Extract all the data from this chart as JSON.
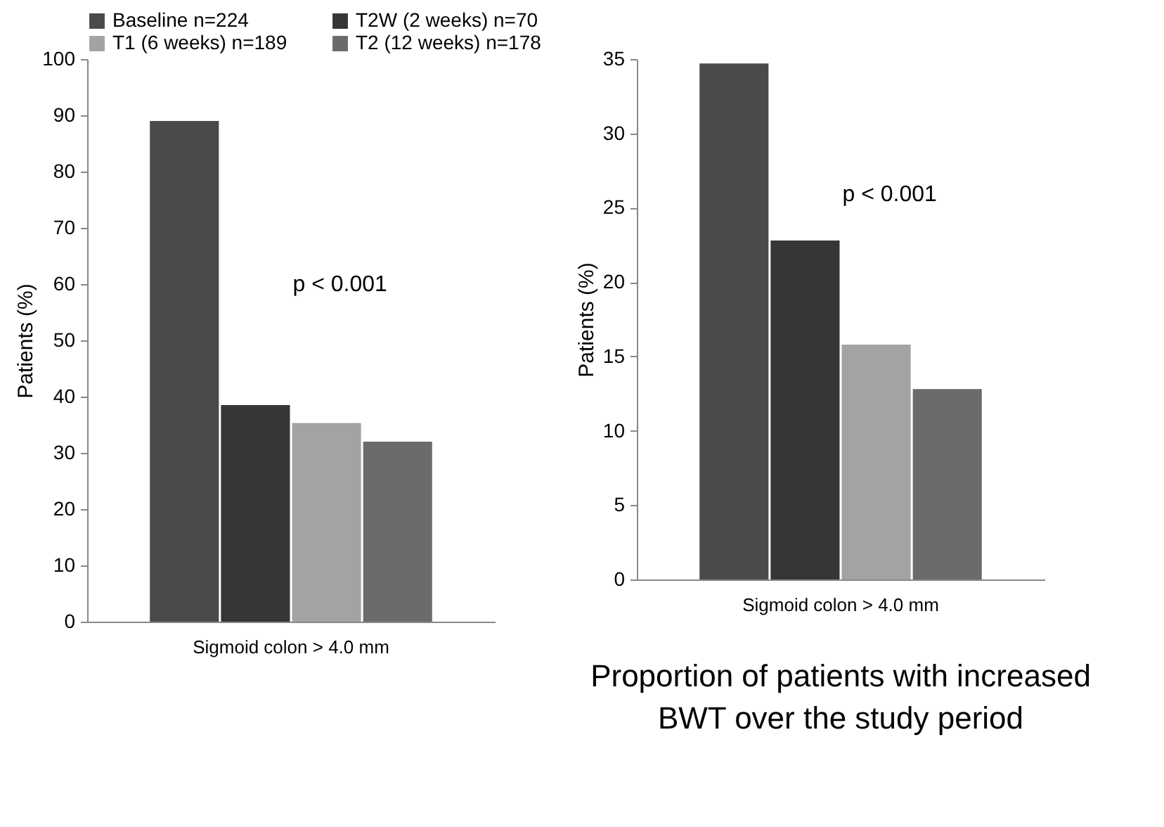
{
  "chart_data": [
    {
      "type": "bar",
      "categories": [
        "Sigmoid colon > 4.0 mm"
      ],
      "ylabel": "Patients (%)",
      "ylim": [
        0,
        100
      ],
      "yticks": [
        0,
        10,
        20,
        30,
        40,
        50,
        60,
        70,
        80,
        90,
        100
      ],
      "legend": "top",
      "annotations": [
        "p < 0.001"
      ],
      "series": [
        {
          "name": "Baseline n=224",
          "color": "#4a4a4a",
          "values": [
            89
          ]
        },
        {
          "name": "T2W (2 weeks) n=70",
          "color": "#363636",
          "values": [
            38.5
          ]
        },
        {
          "name": "T1 (6 weeks) n=189",
          "color": "#a3a3a3",
          "values": [
            35.3
          ]
        },
        {
          "name": "T2 (12 weeks) n=178",
          "color": "#6b6b6b",
          "values": [
            32
          ]
        }
      ]
    },
    {
      "type": "bar",
      "title": "Proportion of patients with increased BWT over the study period",
      "categories": [
        "Sigmoid colon > 4.0 mm"
      ],
      "ylabel": "Patients (%)",
      "ylim": [
        0,
        35
      ],
      "yticks": [
        0,
        5,
        10,
        15,
        20,
        25,
        30,
        35
      ],
      "annotations": [
        "p < 0.001"
      ],
      "series": [
        {
          "color": "#4a4a4a",
          "values": [
            34.7
          ]
        },
        {
          "color": "#363636",
          "values": [
            22.8
          ]
        },
        {
          "color": "#a3a3a3",
          "values": [
            15.8
          ]
        },
        {
          "color": "#6b6b6b",
          "values": [
            12.8
          ]
        }
      ]
    }
  ]
}
